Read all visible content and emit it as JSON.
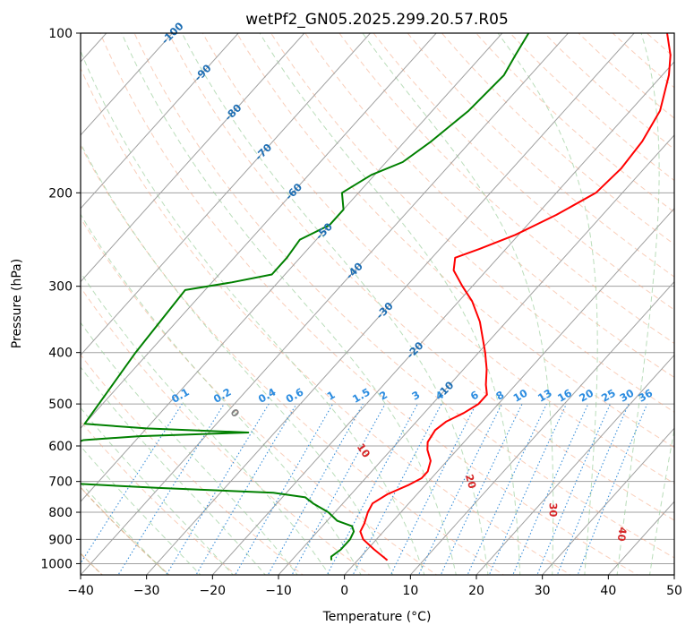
{
  "chart_data": {
    "type": "skew-t",
    "title": "wetPf2_GN05.2025.299.20.57.R05",
    "xlabel": "Temperature (°C)",
    "ylabel": "Pressure (hPa)",
    "xlim": [
      -40,
      50
    ],
    "ylim": [
      1050,
      100
    ],
    "x_ticks": [
      -40,
      -30,
      -20,
      -10,
      0,
      10,
      20,
      30,
      40,
      50
    ],
    "x_tick_labels": [
      "−40",
      "−30",
      "−20",
      "−10",
      "0",
      "10",
      "20",
      "30",
      "40",
      "50"
    ],
    "y_ticks": [
      1000,
      900,
      800,
      700,
      600,
      500,
      400,
      300,
      200,
      100
    ],
    "y_tick_labels": [
      "1000",
      "900",
      "800",
      "700",
      "600",
      "500",
      "400",
      "300",
      "200",
      "100"
    ],
    "colors": {
      "temperature": "#ff0000",
      "dewpoint": "#008000",
      "isotherm": "#a0a0a0",
      "dry_adiabat": "#f4a582",
      "moist_adiabat": "#9ccf9c",
      "mixing_ratio": "#3a8fd9",
      "isotherm_label": "#1f6fb4",
      "mixing_label": "#2b8ce0",
      "moist_label": "#d62728",
      "zero_label": "#808080"
    },
    "temperature_profile": {
      "name": "Temperature",
      "points": [
        {
          "p": 985,
          "t": 4.5
        },
        {
          "p": 940,
          "t": 1.0
        },
        {
          "p": 900,
          "t": -2.0
        },
        {
          "p": 870,
          "t": -3.5
        },
        {
          "p": 840,
          "t": -4.0
        },
        {
          "p": 800,
          "t": -5.0
        },
        {
          "p": 770,
          "t": -5.5
        },
        {
          "p": 740,
          "t": -4.5
        },
        {
          "p": 710,
          "t": -2.5
        },
        {
          "p": 690,
          "t": -1.5
        },
        {
          "p": 670,
          "t": -1.5
        },
        {
          "p": 640,
          "t": -2.5
        },
        {
          "p": 610,
          "t": -4.5
        },
        {
          "p": 590,
          "t": -5.5
        },
        {
          "p": 560,
          "t": -6.0
        },
        {
          "p": 540,
          "t": -5.5
        },
        {
          "p": 520,
          "t": -4.0
        },
        {
          "p": 500,
          "t": -3.0
        },
        {
          "p": 480,
          "t": -3.0
        },
        {
          "p": 460,
          "t": -4.5
        },
        {
          "p": 430,
          "t": -6.5
        },
        {
          "p": 400,
          "t": -9.0
        },
        {
          "p": 350,
          "t": -14.0
        },
        {
          "p": 320,
          "t": -18.0
        },
        {
          "p": 300,
          "t": -21.5
        },
        {
          "p": 280,
          "t": -25.0
        },
        {
          "p": 265,
          "t": -26.5
        },
        {
          "p": 255,
          "t": -24.0
        },
        {
          "p": 240,
          "t": -20.5
        },
        {
          "p": 220,
          "t": -17.0
        },
        {
          "p": 200,
          "t": -14.0
        },
        {
          "p": 180,
          "t": -13.5
        },
        {
          "p": 160,
          "t": -14.0
        },
        {
          "p": 140,
          "t": -15.5
        },
        {
          "p": 120,
          "t": -19.0
        },
        {
          "p": 110,
          "t": -21.5
        },
        {
          "p": 100,
          "t": -25.0
        }
      ]
    },
    "dewpoint_profile": {
      "name": "Dew point",
      "points": [
        {
          "p": 985,
          "t": -4.0
        },
        {
          "p": 970,
          "t": -4.5
        },
        {
          "p": 940,
          "t": -4.0
        },
        {
          "p": 900,
          "t": -4.0
        },
        {
          "p": 870,
          "t": -4.5
        },
        {
          "p": 850,
          "t": -5.5
        },
        {
          "p": 830,
          "t": -8.5
        },
        {
          "p": 800,
          "t": -11.0
        },
        {
          "p": 770,
          "t": -14.5
        },
        {
          "p": 750,
          "t": -16.5
        },
        {
          "p": 735,
          "t": -22.0
        },
        {
          "p": 720,
          "t": -40.0
        },
        {
          "p": 700,
          "t": -60.0
        },
        {
          "p": 620,
          "t": -61.0
        },
        {
          "p": 585,
          "t": -58.0
        },
        {
          "p": 575,
          "t": -50.0
        },
        {
          "p": 566,
          "t": -34.0
        },
        {
          "p": 556,
          "t": -50.0
        },
        {
          "p": 545,
          "t": -60.0
        },
        {
          "p": 400,
          "t": -62.0
        },
        {
          "p": 305,
          "t": -63.0
        },
        {
          "p": 295,
          "t": -57.0
        },
        {
          "p": 285,
          "t": -52.0
        },
        {
          "p": 265,
          "t": -52.0
        },
        {
          "p": 245,
          "t": -52.5
        },
        {
          "p": 230,
          "t": -50.0
        },
        {
          "p": 215,
          "t": -50.0
        },
        {
          "p": 200,
          "t": -52.5
        },
        {
          "p": 185,
          "t": -50.5
        },
        {
          "p": 175,
          "t": -47.5
        },
        {
          "p": 160,
          "t": -46.0
        },
        {
          "p": 140,
          "t": -44.5
        },
        {
          "p": 120,
          "t": -44.0
        },
        {
          "p": 110,
          "t": -45.0
        },
        {
          "p": 100,
          "t": -46.0
        }
      ]
    },
    "isotherm_labels": [
      {
        "label": "-100",
        "t": -100
      },
      {
        "label": "-90",
        "t": -90
      },
      {
        "label": "-80",
        "t": -80
      },
      {
        "label": "-70",
        "t": -70
      },
      {
        "label": "-60",
        "t": -60
      },
      {
        "label": "-50",
        "t": -50
      },
      {
        "label": "-40",
        "t": -40
      },
      {
        "label": "-30",
        "t": -30
      },
      {
        "label": "-20",
        "t": -20
      },
      {
        "label": "-10",
        "t": -10
      }
    ],
    "mixing_ratio_lines": [
      {
        "label": "0.1",
        "w": 0.1
      },
      {
        "label": "0.2",
        "w": 0.2
      },
      {
        "label": "0.4",
        "w": 0.4
      },
      {
        "label": "0.6",
        "w": 0.6
      },
      {
        "label": "1",
        "w": 1
      },
      {
        "label": "1.5",
        "w": 1.5
      },
      {
        "label": "2",
        "w": 2
      },
      {
        "label": "3",
        "w": 3
      },
      {
        "label": "4",
        "w": 4
      },
      {
        "label": "6",
        "w": 6
      },
      {
        "label": "8",
        "w": 8
      },
      {
        "label": "10",
        "w": 10
      },
      {
        "label": "13",
        "w": 13
      },
      {
        "label": "16",
        "w": 16
      },
      {
        "label": "20",
        "w": 20
      },
      {
        "label": "25",
        "w": 25
      },
      {
        "label": "30",
        "w": 30
      },
      {
        "label": "36",
        "w": 36
      }
    ],
    "moist_adiabat_labels": [
      {
        "label": "0",
        "tw": 0
      },
      {
        "label": "10",
        "tw": 10
      },
      {
        "label": "20",
        "tw": 20
      },
      {
        "label": "30",
        "tw": 30
      },
      {
        "label": "40",
        "tw": 40
      }
    ]
  }
}
